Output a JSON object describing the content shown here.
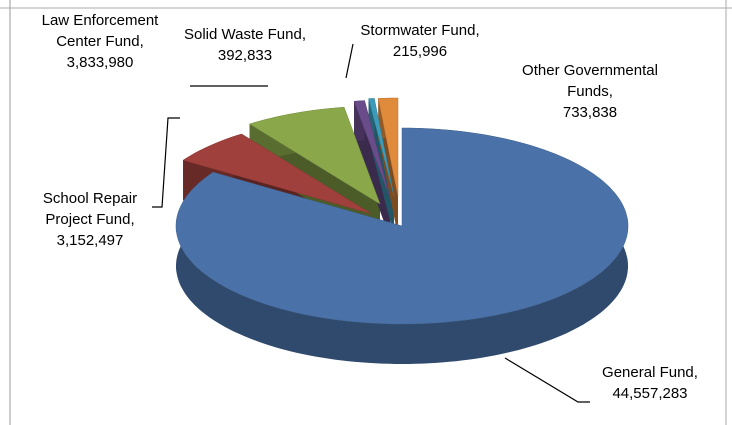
{
  "chart_data": {
    "type": "pie3d",
    "categories": [
      "General Fund",
      "School Repair Project Fund",
      "Law Enforcement Center Fund",
      "Solid Waste Fund",
      "Stormwater Fund",
      "Other Governmental Funds"
    ],
    "values": [
      44557283,
      3152497,
      3833980,
      392833,
      215996,
      733838
    ],
    "value_labels": [
      "44,557,283",
      "3,152,497",
      "3,833,980",
      "392,833",
      "215,996",
      "733,838"
    ],
    "label_separator": ",",
    "colors": [
      "#4a72a8",
      "#a0403c",
      "#8aa84a",
      "#6a4c8a",
      "#3d9ab8",
      "#e08a3c"
    ]
  }
}
